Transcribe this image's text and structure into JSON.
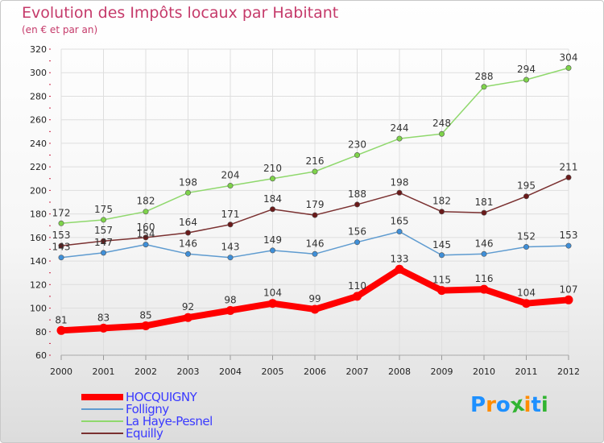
{
  "header": {
    "title": "Evolution des Impôts locaux par Habitant",
    "subtitle": "(en € et par an)"
  },
  "logo": {
    "text": "Proxiti",
    "colors": [
      "#1e90ff",
      "#ff8c00",
      "#1e90ff",
      "#32b432",
      "#ff8c00",
      "#1e90ff",
      "#32b432"
    ]
  },
  "chart_data": {
    "type": "line",
    "title": "Evolution des Impôts locaux par Habitant",
    "subtitle": "(en € et par an)",
    "x": [
      "2000",
      "2001",
      "2002",
      "2003",
      "2004",
      "2005",
      "2006",
      "2007",
      "2008",
      "2009",
      "2010",
      "2011",
      "2012"
    ],
    "ylim": [
      60,
      320
    ],
    "yticks": [
      60,
      80,
      100,
      120,
      140,
      160,
      180,
      200,
      220,
      240,
      260,
      280,
      300,
      320
    ],
    "grid": true,
    "legend_position": "bottom-left",
    "series": [
      {
        "name": "HOCQUIGNY",
        "color": "#ff0000",
        "marker": "#ff0000",
        "values": [
          81,
          83,
          85,
          92,
          98,
          104,
          99,
          110,
          133,
          115,
          116,
          104,
          107
        ]
      },
      {
        "name": "Folligny",
        "color": "#5e9bd0",
        "marker": "#3f8fd8",
        "values": [
          143,
          147,
          154,
          146,
          143,
          149,
          146,
          156,
          165,
          145,
          146,
          152,
          153
        ]
      },
      {
        "name": "La Haye-Pesnel",
        "color": "#8fd86c",
        "marker": "#7ed34a",
        "values": [
          172,
          175,
          182,
          198,
          204,
          210,
          216,
          230,
          244,
          248,
          288,
          294,
          304
        ]
      },
      {
        "name": "Equilly",
        "color": "#7a3030",
        "marker": "#6a1a1a",
        "values": [
          153,
          157,
          160,
          164,
          171,
          184,
          179,
          188,
          198,
          182,
          181,
          195,
          211
        ]
      }
    ]
  }
}
